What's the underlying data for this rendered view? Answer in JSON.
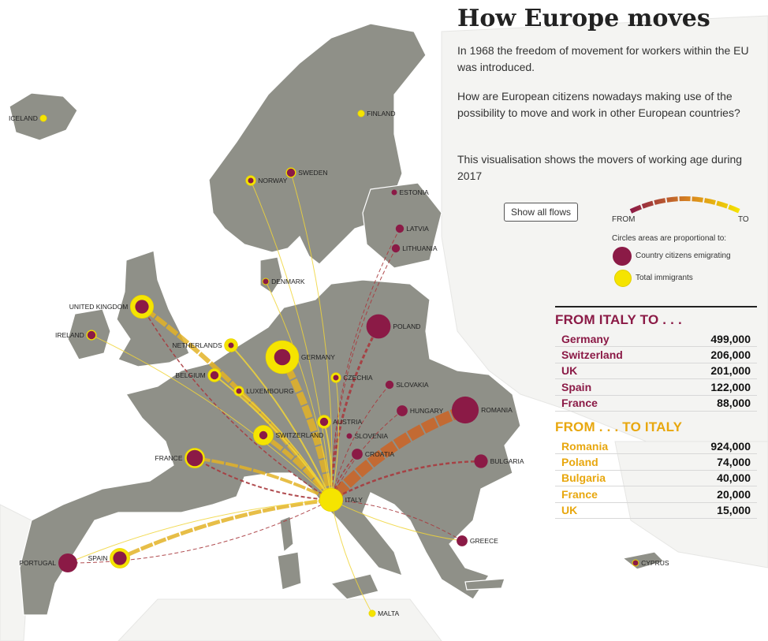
{
  "header": {
    "title": "How Europe moves",
    "intro_1": "In 1968 the freedom of movement for workers within the EU was introduced.",
    "intro_2": "How are European citizens nowadays making use of the possibility to move and work in other European countries?",
    "intro_3": "This visualisation shows the movers of working age during 2017"
  },
  "controls": {
    "show_all_flows": "Show all flows"
  },
  "legend": {
    "from_label": "FROM",
    "to_label": "TO",
    "caption": "Circles areas are proportional to:",
    "emigrating_label": "Country citizens emigrating",
    "immigrants_label": "Total immigrants"
  },
  "colors": {
    "emigrating": "#8b1a46",
    "immigrants": "#f5e400",
    "land": "#8f9088",
    "from_heading": "#8b1a46",
    "to_heading": "#e8a70e",
    "flow_from": "#8b1a46",
    "flow_to": "#f5e400"
  },
  "table_from": {
    "heading": "FROM ITALY TO . . .",
    "rows": [
      {
        "country": "Germany",
        "value": "499,000"
      },
      {
        "country": "Switzerland",
        "value": "206,000"
      },
      {
        "country": "UK",
        "value": "201,000"
      },
      {
        "country": "Spain",
        "value": "122,000"
      },
      {
        "country": "France",
        "value": "88,000"
      }
    ]
  },
  "table_to": {
    "heading": "FROM . . . TO ITALY",
    "rows": [
      {
        "country": "Romania",
        "value": "924,000"
      },
      {
        "country": "Poland",
        "value": "74,000"
      },
      {
        "country": "Bulgaria",
        "value": "40,000"
      },
      {
        "country": "France",
        "value": "20,000"
      },
      {
        "country": "UK",
        "value": "15,000"
      }
    ]
  },
  "map": {
    "selected": "ITALY",
    "countries": [
      {
        "label": "ICELAND",
        "emigrating": 0,
        "immigrants": 1
      },
      {
        "label": "FINLAND",
        "emigrating": 0,
        "immigrants": 1
      },
      {
        "label": "NORWAY",
        "emigrating": 1,
        "immigrants": 2
      },
      {
        "label": "SWEDEN",
        "emigrating": 2,
        "immigrants": 2
      },
      {
        "label": "ESTONIA",
        "emigrating": 1,
        "immigrants": 0
      },
      {
        "label": "LATVIA",
        "emigrating": 2,
        "immigrants": 0
      },
      {
        "label": "LITHUANIA",
        "emigrating": 2,
        "immigrants": 0
      },
      {
        "label": "DENMARK",
        "emigrating": 1,
        "immigrants": 1
      },
      {
        "label": "UNITED KINGDOM",
        "emigrating": 4,
        "immigrants": 6
      },
      {
        "label": "IRELAND",
        "emigrating": 2,
        "immigrants": 2
      },
      {
        "label": "NETHERLANDS",
        "emigrating": 1,
        "immigrants": 3
      },
      {
        "label": "GERMANY",
        "emigrating": 5,
        "immigrants": 9
      },
      {
        "label": "POLAND",
        "emigrating": 8,
        "immigrants": 0
      },
      {
        "label": "BELGIUM",
        "emigrating": 2,
        "immigrants": 3
      },
      {
        "label": "LUXEMBOURG",
        "emigrating": 1,
        "immigrants": 2
      },
      {
        "label": "CZECHIA",
        "emigrating": 1,
        "immigrants": 2
      },
      {
        "label": "SLOVAKIA",
        "emigrating": 2,
        "immigrants": 0
      },
      {
        "label": "AUSTRIA",
        "emigrating": 2,
        "immigrants": 3
      },
      {
        "label": "HUNGARY",
        "emigrating": 3,
        "immigrants": 1
      },
      {
        "label": "ROMANIA",
        "emigrating": 9,
        "immigrants": 0
      },
      {
        "label": "SWITZERLAND",
        "emigrating": 2,
        "immigrants": 5
      },
      {
        "label": "SLOVENIA",
        "emigrating": 1,
        "immigrants": 0
      },
      {
        "label": "CROATIA",
        "emigrating": 3,
        "immigrants": 0
      },
      {
        "label": "FRANCE",
        "emigrating": 5,
        "immigrants": 5
      },
      {
        "label": "BULGARIA",
        "emigrating": 4,
        "immigrants": 0
      },
      {
        "label": "ITALY",
        "emigrating": 0,
        "immigrants": 6
      },
      {
        "label": "GREECE",
        "emigrating": 3,
        "immigrants": 2
      },
      {
        "label": "PORTUGAL",
        "emigrating": 6,
        "immigrants": 1
      },
      {
        "label": "SPAIN",
        "emigrating": 4,
        "immigrants": 5
      },
      {
        "label": "CYPRUS",
        "emigrating": 1,
        "immigrants": 1
      },
      {
        "label": "MALTA",
        "emigrating": 0,
        "immigrants": 1
      }
    ]
  }
}
